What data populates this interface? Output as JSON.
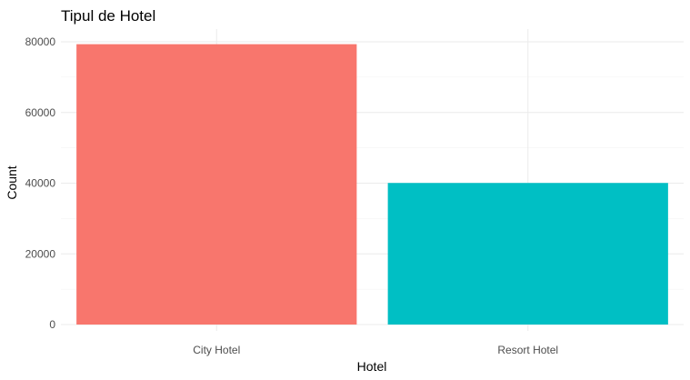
{
  "chart_data": {
    "type": "bar",
    "title": "Tipul de Hotel",
    "xlabel": "Hotel",
    "ylabel": "Count",
    "categories": [
      "City Hotel",
      "Resort Hotel"
    ],
    "values": [
      79330,
      40060
    ],
    "colors": [
      "#F8766D",
      "#00BFC4"
    ],
    "ylim": [
      0,
      80000
    ],
    "yticks": [
      0,
      20000,
      40000,
      60000,
      80000
    ],
    "ytick_labels": [
      "0",
      "20000",
      "40000",
      "60000",
      "80000"
    ],
    "grid": true,
    "legend": "none"
  }
}
